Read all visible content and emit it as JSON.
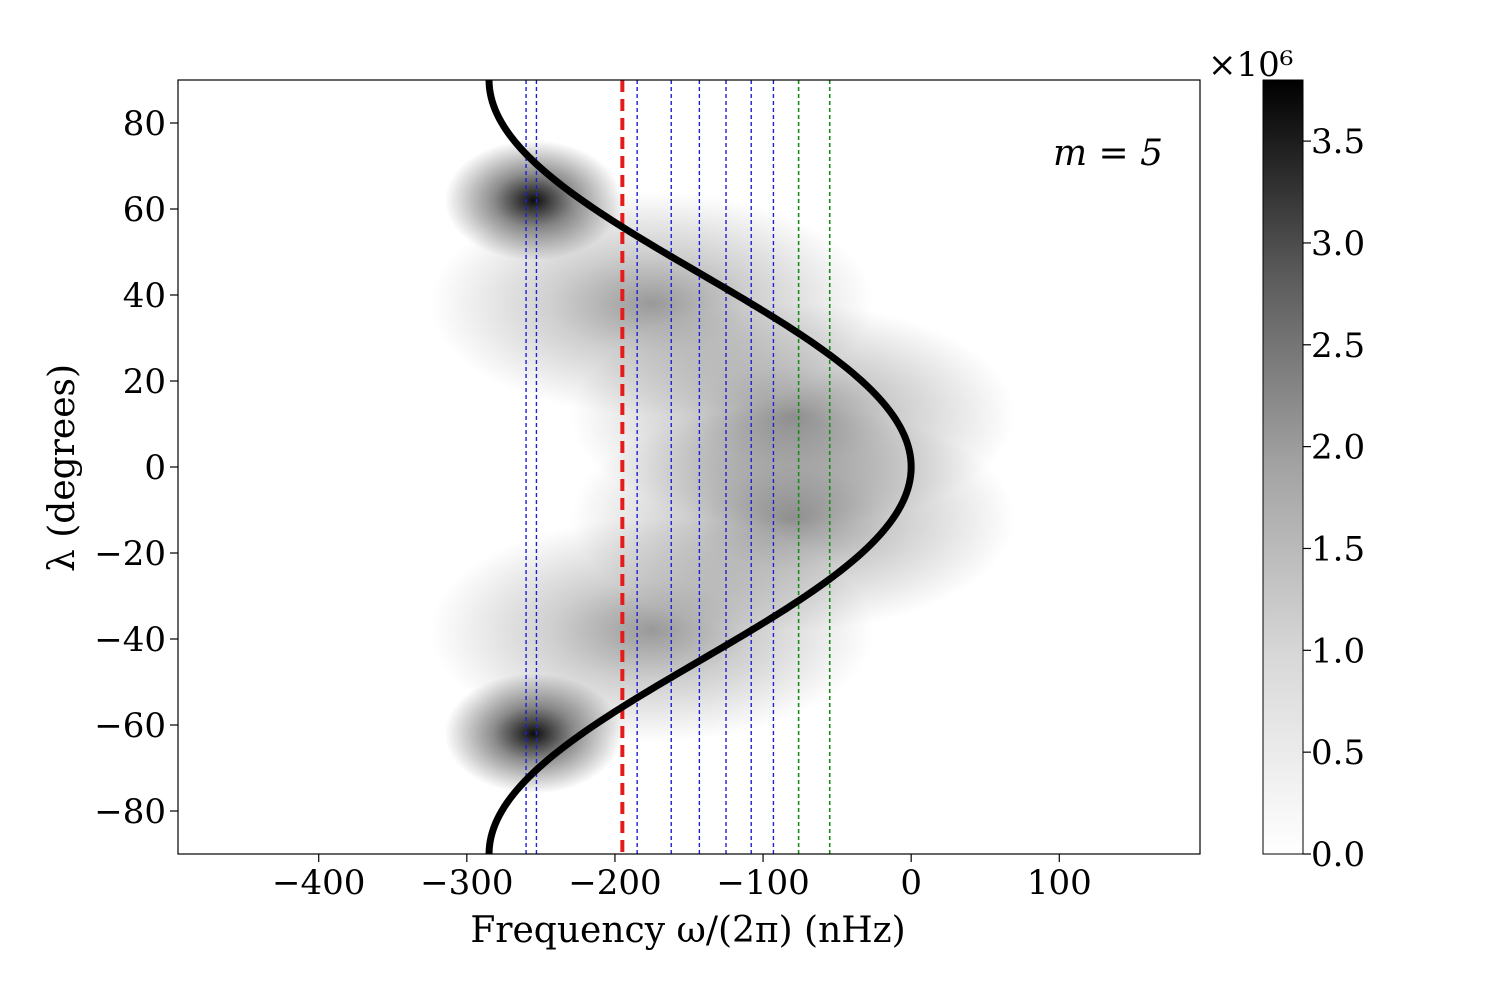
{
  "chart_data": {
    "type": "heatmap",
    "xlabel": "Frequency ω/(2π) (nHz)",
    "ylabel": "λ (degrees)",
    "annotation": "m = 5",
    "xlim": [
      -495,
      195
    ],
    "ylim": [
      -90,
      90
    ],
    "xticks": [
      -400,
      -300,
      -200,
      -100,
      0,
      100
    ],
    "xtick_labels": [
      "−400",
      "−300",
      "−200",
      "−100",
      "0",
      "100"
    ],
    "yticks": [
      -80,
      -60,
      -40,
      -20,
      0,
      20,
      40,
      60,
      80
    ],
    "ytick_labels": [
      "−80",
      "−60",
      "−40",
      "−20",
      "0",
      "20",
      "40",
      "60",
      "80"
    ],
    "colorbar": {
      "min": 0.0,
      "max": 3.8,
      "ticks": [
        0.0,
        0.5,
        1.0,
        1.5,
        2.0,
        2.5,
        3.0,
        3.5
      ],
      "tick_labels": [
        "0.0",
        "0.5",
        "1.0",
        "1.5",
        "2.0",
        "2.5",
        "3.0",
        "3.5"
      ],
      "scale_label": "×10⁶",
      "colormap": "Greys"
    },
    "density_peaks": [
      {
        "x": -255,
        "y": 62,
        "amplitude": 3.8
      },
      {
        "x": -255,
        "y": -62,
        "amplitude": 3.8
      },
      {
        "x": -175,
        "y": 38,
        "amplitude": 1.6
      },
      {
        "x": -175,
        "y": -38,
        "amplitude": 1.6
      },
      {
        "x": -80,
        "y": 12,
        "amplitude": 1.7
      },
      {
        "x": -80,
        "y": -12,
        "amplitude": 1.7
      }
    ],
    "curve": {
      "description": "x = -285 * sin²(λ)",
      "amplitude": -285,
      "color": "#000000"
    },
    "vertical_lines": {
      "red_dashed": [
        -195
      ],
      "blue_dotted": [
        -260,
        -253,
        -185,
        -162,
        -143,
        -125,
        -108,
        -93
      ],
      "green_dotted": [
        -76,
        -55
      ]
    },
    "colors": {
      "red": "#e41a1c",
      "blue": "#1f1fd6",
      "green": "#1a8a1a",
      "curve": "#000000"
    }
  }
}
